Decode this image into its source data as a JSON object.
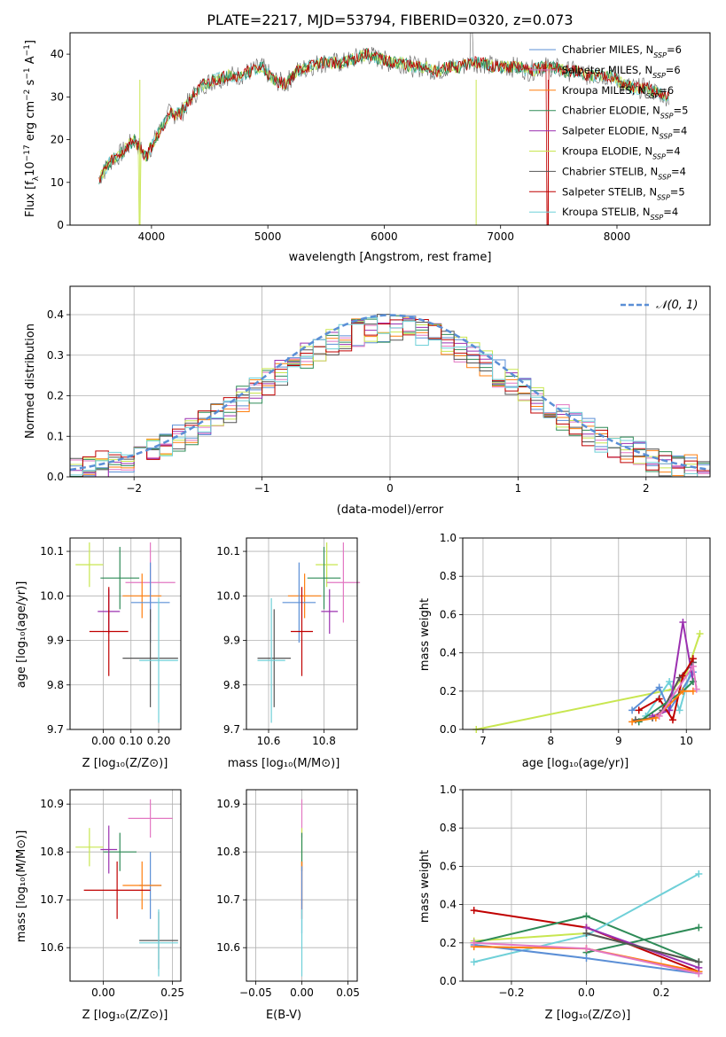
{
  "title": "PLATE=2217, MJD=53794, FIBERID=0320, z=0.073",
  "colors": {
    "chabrier_miles": "#5b8fd6",
    "salpeter_miles": "#e377c2",
    "kroupa_miles": "#ff7f0e",
    "chabrier_elodie": "#2e8b57",
    "salpeter_elodie": "#9b30b0",
    "kroupa_elodie": "#c8e650",
    "chabrier_stelib": "#555555",
    "salpeter_stelib": "#c00000",
    "kroupa_stelib": "#6fd0d8",
    "gauss": "#5b8fd6",
    "spectrum": "#777777"
  },
  "legend_spectrum": [
    {
      "model": "Chabrier MILES, N",
      "sub": "SSP",
      "rest": "=6",
      "color": "chabrier_miles"
    },
    {
      "model": "Salpeter MILES, N",
      "sub": "SSP",
      "rest": "=6",
      "color": "salpeter_miles"
    },
    {
      "model": "Kroupa MILES, N",
      "sub": "SSP",
      "rest": "=6",
      "color": "kroupa_miles"
    },
    {
      "model": "Chabrier ELODIE, N",
      "sub": "SSP",
      "rest": "=5",
      "color": "chabrier_elodie"
    },
    {
      "model": "Salpeter ELODIE, N",
      "sub": "SSP",
      "rest": "=4",
      "color": "salpeter_elodie"
    },
    {
      "model": "Kroupa ELODIE, N",
      "sub": "SSP",
      "rest": "=4",
      "color": "kroupa_elodie"
    },
    {
      "model": "Chabrier STELIB, N",
      "sub": "SSP",
      "rest": "=4",
      "color": "chabrier_stelib"
    },
    {
      "model": "Salpeter STELIB, N",
      "sub": "SSP",
      "rest": "=5",
      "color": "salpeter_stelib"
    },
    {
      "model": "Kroupa STELIB, N",
      "sub": "SSP",
      "rest": "=4",
      "color": "kroupa_stelib"
    }
  ],
  "legend_hist": {
    "label": "𝒩(0, 1)"
  },
  "chart_data": [
    {
      "id": "spectrum",
      "type": "line",
      "xlabel": "wavelength [Angstrom, rest frame]",
      "ylabel_parts": [
        "Flux [f",
        "λ",
        "10",
        "−17",
        " erg cm",
        "−2",
        " s",
        "−1",
        " A",
        "−1",
        "]"
      ],
      "xlim": [
        3300,
        8800
      ],
      "ylim": [
        0,
        45
      ],
      "xticks": [
        4000,
        5000,
        6000,
        7000,
        8000
      ],
      "yticks": [
        0,
        10,
        20,
        30,
        40
      ],
      "x": [
        3550,
        3650,
        3750,
        3850,
        3950,
        4050,
        4150,
        4250,
        4350,
        4450,
        4550,
        4650,
        4750,
        4850,
        4950,
        5050,
        5150,
        5250,
        5350,
        5450,
        5550,
        5650,
        5750,
        5850,
        5950,
        6050,
        6150,
        6250,
        6350,
        6450,
        6550,
        6650,
        6750,
        6850,
        6950,
        7050,
        7150,
        7250,
        7350,
        7450,
        7550,
        7650,
        7750,
        7850,
        7950,
        8050,
        8150,
        8250,
        8350,
        8450
      ],
      "y": [
        11,
        15,
        17,
        20,
        16,
        21,
        26,
        26,
        30,
        33,
        34,
        35,
        35,
        36,
        37,
        34,
        33,
        36,
        37,
        38,
        38,
        38,
        39,
        40,
        39,
        38,
        38,
        37,
        37,
        36,
        37,
        37,
        38,
        38,
        37,
        37,
        37,
        36,
        37,
        37,
        36,
        36,
        35,
        35,
        35,
        33,
        32,
        32,
        31,
        30
      ]
    },
    {
      "id": "residuals",
      "type": "line",
      "xlabel": "(data-model)/error",
      "ylabel": "Normed distribution",
      "xlim": [
        -2.5,
        2.5
      ],
      "ylim": [
        0,
        0.47
      ],
      "xticks": [
        -2,
        -1,
        0,
        1,
        2
      ],
      "yticks": [
        0.0,
        0.1,
        0.2,
        0.3,
        0.4
      ],
      "xticklabels": [
        "−2",
        "−1",
        "0",
        "1",
        "2"
      ],
      "yticklabels": [
        "0.0",
        "0.1",
        "0.2",
        "0.3",
        "0.4"
      ],
      "series": [
        {
          "name": "𝒩(0, 1)",
          "function": "normal",
          "mean": 0,
          "sigma": 1
        }
      ]
    },
    {
      "id": "age_vs_Z",
      "type": "scatter",
      "xlabel": "Z [log₁₀(Z/Z⊙)]",
      "ylabel": "age  [log₁₀(age/yr)]",
      "xlim": [
        -0.12,
        0.28
      ],
      "ylim": [
        9.7,
        10.13
      ],
      "xticks": [
        0.0,
        0.1,
        0.2
      ],
      "yticks": [
        9.7,
        9.8,
        9.9,
        10.0,
        10.1
      ],
      "xticklabels": [
        "0.00",
        "0.10",
        "0.20"
      ],
      "yticklabels": [
        "9.7",
        "9.8",
        "9.9",
        "10.0",
        "10.1"
      ],
      "points": [
        {
          "c": "kroupa_elodie",
          "x": -0.05,
          "xe": 0.05,
          "y": 10.07,
          "ye": 0.05
        },
        {
          "c": "chabrier_elodie",
          "x": 0.06,
          "xe": 0.07,
          "y": 10.04,
          "ye": 0.07
        },
        {
          "c": "salpeter_miles",
          "x": 0.17,
          "xe": 0.09,
          "y": 10.03,
          "ye": 0.09
        },
        {
          "c": "kroupa_miles",
          "x": 0.14,
          "xe": 0.07,
          "y": 10.0,
          "ye": 0.05
        },
        {
          "c": "chabrier_miles",
          "x": 0.17,
          "xe": 0.07,
          "y": 9.985,
          "ye": 0.09
        },
        {
          "c": "salpeter_elodie",
          "x": 0.02,
          "xe": 0.04,
          "y": 9.965,
          "ye": 0.05
        },
        {
          "c": "salpeter_stelib",
          "x": 0.02,
          "xe": 0.07,
          "y": 9.92,
          "ye": 0.1
        },
        {
          "c": "chabrier_stelib",
          "x": 0.17,
          "xe": 0.1,
          "y": 9.86,
          "ye": 0.11
        },
        {
          "c": "kroupa_stelib",
          "x": 0.2,
          "xe": 0.07,
          "y": 9.855,
          "ye": 0.14
        }
      ]
    },
    {
      "id": "age_vs_mass",
      "type": "scatter",
      "xlabel": "mass [log₁₀(M/M⊙)]",
      "ylabel": "",
      "xlim": [
        10.52,
        10.92
      ],
      "ylim": [
        9.7,
        10.13
      ],
      "xticks": [
        10.6,
        10.8
      ],
      "yticks": [
        9.7,
        9.8,
        9.9,
        10.0,
        10.1
      ],
      "xticklabels": [
        "10.6",
        "10.8"
      ],
      "yticklabels": [
        "9.7",
        "9.8",
        "9.9",
        "10.0",
        "10.1"
      ],
      "points": [
        {
          "c": "kroupa_elodie",
          "x": 10.81,
          "xe": 0.04,
          "y": 10.07,
          "ye": 0.05
        },
        {
          "c": "chabrier_elodie",
          "x": 10.8,
          "xe": 0.06,
          "y": 10.04,
          "ye": 0.07
        },
        {
          "c": "salpeter_miles",
          "x": 10.87,
          "xe": 0.06,
          "y": 10.03,
          "ye": 0.09
        },
        {
          "c": "kroupa_miles",
          "x": 10.73,
          "xe": 0.06,
          "y": 10.0,
          "ye": 0.05
        },
        {
          "c": "chabrier_miles",
          "x": 10.71,
          "xe": 0.06,
          "y": 9.985,
          "ye": 0.09
        },
        {
          "c": "salpeter_elodie",
          "x": 10.82,
          "xe": 0.03,
          "y": 9.965,
          "ye": 0.05
        },
        {
          "c": "salpeter_stelib",
          "x": 10.72,
          "xe": 0.04,
          "y": 9.92,
          "ye": 0.1
        },
        {
          "c": "chabrier_stelib",
          "x": 10.62,
          "xe": 0.06,
          "y": 9.86,
          "ye": 0.11
        },
        {
          "c": "kroupa_stelib",
          "x": 10.61,
          "xe": 0.05,
          "y": 9.855,
          "ye": 0.14
        }
      ]
    },
    {
      "id": "weight_vs_age",
      "type": "line",
      "xlabel": "age  [log₁₀(age/yr)]",
      "ylabel": "mass weight",
      "xlim": [
        6.7,
        10.35
      ],
      "ylim": [
        0,
        1
      ],
      "xticks": [
        7,
        8,
        9,
        10
      ],
      "yticks": [
        0.0,
        0.2,
        0.4,
        0.6,
        0.8,
        1.0
      ],
      "xticklabels": [
        "7",
        "8",
        "9",
        "10"
      ],
      "yticklabels": [
        "0.0",
        "0.2",
        "0.4",
        "0.6",
        "0.8",
        "1.0"
      ],
      "series": [
        {
          "c": "kroupa_elodie",
          "x": [
            6.9,
            9.8,
            10.0,
            10.2
          ],
          "y": [
            0.0,
            0.21,
            0.29,
            0.5
          ]
        },
        {
          "c": "kroupa_stelib",
          "x": [
            9.4,
            9.75,
            9.9,
            10.1
          ],
          "y": [
            0.07,
            0.25,
            0.1,
            0.35
          ]
        },
        {
          "c": "chabrier_miles",
          "x": [
            9.2,
            9.6,
            9.75,
            10.1
          ],
          "y": [
            0.1,
            0.22,
            0.1,
            0.3
          ]
        },
        {
          "c": "chabrier_stelib",
          "x": [
            9.25,
            9.5,
            9.65,
            9.9,
            10.1
          ],
          "y": [
            0.05,
            0.06,
            0.1,
            0.27,
            0.35
          ]
        },
        {
          "c": "salpeter_elodie",
          "x": [
            9.5,
            9.75,
            9.95,
            10.1
          ],
          "y": [
            0.07,
            0.1,
            0.56,
            0.25
          ]
        },
        {
          "c": "salpeter_stelib",
          "x": [
            9.3,
            9.6,
            9.8,
            9.95,
            10.1
          ],
          "y": [
            0.1,
            0.16,
            0.05,
            0.28,
            0.37
          ]
        },
        {
          "c": "chabrier_elodie",
          "x": [
            9.3,
            9.95,
            10.1
          ],
          "y": [
            0.04,
            0.2,
            0.25
          ]
        },
        {
          "c": "kroupa_miles",
          "x": [
            9.2,
            9.55,
            9.95,
            10.1
          ],
          "y": [
            0.04,
            0.06,
            0.2,
            0.2
          ]
        },
        {
          "c": "salpeter_miles",
          "x": [
            9.6,
            10.1,
            10.15
          ],
          "y": [
            0.07,
            0.33,
            0.21
          ]
        }
      ]
    },
    {
      "id": "mass_vs_Z",
      "type": "scatter",
      "xlabel": "Z [log₁₀(Z/Z⊙)]",
      "ylabel": "mass [log₁₀(M/M⊙)]",
      "xlim": [
        -0.12,
        0.28
      ],
      "ylim": [
        10.53,
        10.93
      ],
      "xticks": [
        0.0,
        0.25
      ],
      "yticks": [
        10.6,
        10.7,
        10.8,
        10.9
      ],
      "xticklabels": [
        "0.00",
        "0.25"
      ],
      "yticklabels": [
        "10.6",
        "10.7",
        "10.8",
        "10.9"
      ],
      "points": [
        {
          "c": "salpeter_miles",
          "x": 0.17,
          "xe": 0.08,
          "y": 10.87,
          "ye": 0.04
        },
        {
          "c": "kroupa_elodie",
          "x": -0.05,
          "xe": 0.05,
          "y": 10.81,
          "ye": 0.04
        },
        {
          "c": "chabrier_elodie",
          "x": 0.06,
          "xe": 0.06,
          "y": 10.8,
          "ye": 0.04
        },
        {
          "c": "salpeter_elodie",
          "x": 0.02,
          "xe": 0.03,
          "y": 10.805,
          "ye": 0.05
        },
        {
          "c": "chabrier_miles",
          "x": 0.17,
          "xe": 0.04,
          "y": 10.73,
          "ye": 0.07
        },
        {
          "c": "kroupa_miles",
          "x": 0.14,
          "xe": 0.07,
          "y": 10.73,
          "ye": 0.05
        },
        {
          "c": "salpeter_stelib",
          "x": 0.05,
          "xe": 0.12,
          "y": 10.72,
          "ye": 0.06
        },
        {
          "c": "chabrier_stelib",
          "x": 0.2,
          "xe": 0.07,
          "y": 10.615,
          "ye": 0.06
        },
        {
          "c": "kroupa_stelib",
          "x": 0.2,
          "xe": 0.07,
          "y": 10.61,
          "ye": 0.07
        }
      ]
    },
    {
      "id": "mass_vs_EBV",
      "type": "scatter",
      "xlabel": "E(B-V)",
      "ylabel": "",
      "xlim": [
        -0.06,
        0.06
      ],
      "ylim": [
        10.53,
        10.93
      ],
      "xticks": [
        -0.05,
        0.0,
        0.05
      ],
      "yticks": [
        10.6,
        10.7,
        10.8,
        10.9
      ],
      "xticklabels": [
        "−0.05",
        "0.00",
        "0.05"
      ],
      "yticklabels": [
        "10.6",
        "10.7",
        "10.8",
        "10.9"
      ],
      "points": [
        {
          "c": "salpeter_miles",
          "x": 0.0,
          "xe": 0,
          "y": 10.87,
          "ye": 0.04
        },
        {
          "c": "kroupa_elodie",
          "x": 0.0,
          "xe": 0,
          "y": 10.81,
          "ye": 0.04
        },
        {
          "c": "chabrier_elodie",
          "x": 0.0,
          "xe": 0,
          "y": 10.8,
          "ye": 0.04
        },
        {
          "c": "salpeter_stelib",
          "x": 0.0,
          "xe": 0,
          "y": 10.72,
          "ye": 0.06
        },
        {
          "c": "kroupa_miles",
          "x": 0.0,
          "xe": 0,
          "y": 10.73,
          "ye": 0.05
        },
        {
          "c": "chabrier_miles",
          "x": 0.0,
          "xe": 0,
          "y": 10.7,
          "ye": 0.07
        },
        {
          "c": "kroupa_stelib",
          "x": 0.0,
          "xe": 0,
          "y": 10.61,
          "ye": 0.07
        }
      ]
    },
    {
      "id": "weight_vs_Z",
      "type": "line",
      "xlabel": "Z [log₁₀(Z/Z⊙)]",
      "ylabel": "mass weight",
      "xlim": [
        -0.33,
        0.33
      ],
      "ylim": [
        0,
        1
      ],
      "xticks": [
        -0.2,
        0.0,
        0.2
      ],
      "yticks": [
        0.0,
        0.2,
        0.4,
        0.6,
        0.8,
        1.0
      ],
      "xticklabels": [
        "−0.2",
        "0.0",
        "0.2"
      ],
      "yticklabels": [
        "0.0",
        "0.2",
        "0.4",
        "0.6",
        "0.8",
        "1.0"
      ],
      "series": [
        {
          "c": "salpeter_stelib",
          "x": [
            -0.3,
            0.0,
            0.3
          ],
          "y": [
            0.37,
            0.28,
            0.05
          ]
        },
        {
          "c": "kroupa_elodie",
          "x": [
            -0.3,
            0.0,
            0.3
          ],
          "y": [
            0.21,
            0.25,
            0.1
          ]
        },
        {
          "c": "chabrier_elodie",
          "x": [
            -0.3,
            0.0,
            0.3
          ],
          "y": [
            0.2,
            0.34,
            0.1
          ]
        },
        {
          "c": "chabrier_elodie",
          "x": [
            0.0,
            0.3
          ],
          "y": [
            0.15,
            0.28
          ]
        },
        {
          "c": "kroupa_stelib",
          "x": [
            -0.3,
            0.0,
            0.3
          ],
          "y": [
            0.1,
            0.24,
            0.56
          ]
        },
        {
          "c": "chabrier_miles",
          "x": [
            -0.3,
            0.0,
            0.3
          ],
          "y": [
            0.19,
            0.12,
            0.04
          ]
        },
        {
          "c": "kroupa_miles",
          "x": [
            -0.3,
            0.0,
            0.3
          ],
          "y": [
            0.18,
            0.17,
            0.05
          ]
        },
        {
          "c": "salpeter_miles",
          "x": [
            -0.3,
            0.0,
            0.3
          ],
          "y": [
            0.2,
            0.17,
            0.04
          ]
        },
        {
          "c": "salpeter_elodie",
          "x": [
            0.0,
            0.3
          ],
          "y": [
            0.28,
            0.07
          ]
        },
        {
          "c": "chabrier_stelib",
          "x": [
            0.0,
            0.3
          ],
          "y": [
            0.25,
            0.1
          ]
        }
      ]
    }
  ]
}
